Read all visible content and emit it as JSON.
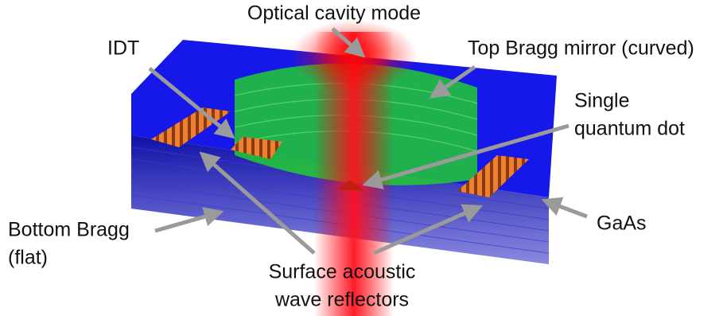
{
  "labels": {
    "optical_cavity_mode": "Optical cavity mode",
    "idt": "IDT",
    "top_bragg_mirror": "Top Bragg mirror (curved)",
    "single_quantum_dot": [
      "Single",
      "quantum dot"
    ],
    "gaas": "GaAs",
    "bottom_bragg": [
      "Bottom Bragg",
      "(flat)"
    ],
    "saw_reflectors": [
      "Surface acoustic",
      "wave reflectors"
    ]
  }
}
